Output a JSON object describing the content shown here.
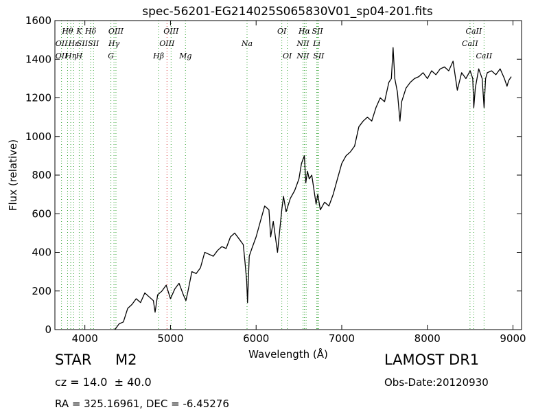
{
  "chart_data": {
    "type": "line",
    "title": "spec-56201-EG214025S065830V01_sp04-201.fits",
    "xlabel": "Wavelength (Å)",
    "ylabel": "Flux (relative)",
    "xlim": [
      3650,
      9100
    ],
    "ylim": [
      0,
      1600
    ],
    "xticks": [
      4000,
      5000,
      6000,
      7000,
      8000,
      9000
    ],
    "yticks": [
      0,
      200,
      400,
      600,
      800,
      1000,
      1200,
      1400,
      1600
    ],
    "grid": false,
    "series": [
      {
        "color": "#000000",
        "x": [
          4350,
          4400,
          4450,
          4500,
          4550,
          4600,
          4650,
          4700,
          4750,
          4800,
          4820,
          4850,
          4900,
          4950,
          5000,
          5050,
          5100,
          5150,
          5180,
          5200,
          5250,
          5300,
          5350,
          5400,
          5450,
          5500,
          5550,
          5600,
          5650,
          5700,
          5750,
          5800,
          5850,
          5870,
          5890,
          5900,
          5920,
          5950,
          6000,
          6050,
          6100,
          6150,
          6170,
          6200,
          6250,
          6300,
          6320,
          6350,
          6400,
          6450,
          6500,
          6530,
          6563,
          6580,
          6600,
          6620,
          6650,
          6700,
          6720,
          6750,
          6800,
          6850,
          6900,
          6950,
          7000,
          7050,
          7100,
          7150,
          7200,
          7250,
          7300,
          7350,
          7400,
          7450,
          7500,
          7550,
          7580,
          7600,
          7620,
          7650,
          7680,
          7700,
          7750,
          7800,
          7850,
          7900,
          7950,
          8000,
          8050,
          8100,
          8150,
          8200,
          8250,
          8300,
          8350,
          8400,
          8450,
          8500,
          8530,
          8542,
          8560,
          8600,
          8640,
          8662,
          8680,
          8700,
          8750,
          8800,
          8850,
          8900,
          8930,
          8950,
          8980
        ],
        "y": [
          0,
          30,
          40,
          110,
          130,
          160,
          140,
          190,
          170,
          150,
          90,
          180,
          200,
          230,
          160,
          210,
          240,
          180,
          150,
          190,
          300,
          290,
          320,
          400,
          390,
          380,
          410,
          430,
          420,
          480,
          500,
          470,
          440,
          350,
          250,
          140,
          380,
          420,
          480,
          560,
          640,
          620,
          480,
          560,
          400,
          620,
          690,
          610,
          680,
          720,
          780,
          860,
          900,
          760,
          820,
          780,
          800,
          650,
          700,
          620,
          660,
          640,
          700,
          780,
          860,
          900,
          920,
          950,
          1050,
          1080,
          1100,
          1080,
          1150,
          1200,
          1180,
          1280,
          1300,
          1460,
          1300,
          1230,
          1080,
          1180,
          1250,
          1280,
          1300,
          1310,
          1330,
          1300,
          1340,
          1320,
          1350,
          1360,
          1340,
          1390,
          1240,
          1330,
          1300,
          1340,
          1300,
          1150,
          1250,
          1350,
          1300,
          1150,
          1300,
          1330,
          1340,
          1320,
          1350,
          1300,
          1260,
          1290,
          1310
        ]
      }
    ],
    "lines": [
      {
        "wl": 3727,
        "color": "#2ca02c",
        "labels": [
          {
            "text": "OII",
            "row": 2
          },
          {
            "text": "OII",
            "row": 3
          }
        ]
      },
      {
        "wl": 3798,
        "color": "#2ca02c",
        "labels": [
          {
            "text": "Hθ",
            "row": 1
          }
        ]
      },
      {
        "wl": 3835,
        "color": "#2ca02c",
        "labels": [
          {
            "text": "Hη",
            "row": 3
          }
        ]
      },
      {
        "wl": 3869,
        "color": "#2ca02c",
        "labels": [
          {
            "text": "Hε",
            "row": 2
          }
        ]
      },
      {
        "wl": 3934,
        "color": "#2ca02c",
        "labels": [
          {
            "text": "K",
            "row": 1
          },
          {
            "text": "H",
            "row": 3
          }
        ]
      },
      {
        "wl": 3970,
        "color": "#2ca02c",
        "labels": [
          {
            "text": "SII",
            "row": 2
          }
        ]
      },
      {
        "wl": 4068,
        "color": "#2ca02c",
        "labels": [
          {
            "text": "Hδ",
            "row": 1
          }
        ]
      },
      {
        "wl": 4101,
        "color": "#2ca02c",
        "labels": [
          {
            "text": "SII",
            "row": 2
          }
        ]
      },
      {
        "wl": 4304,
        "color": "#2ca02c",
        "labels": [
          {
            "text": "G",
            "row": 3
          }
        ]
      },
      {
        "wl": 4340,
        "color": "#2ca02c",
        "labels": [
          {
            "text": "Hγ",
            "row": 2
          }
        ]
      },
      {
        "wl": 4363,
        "color": "#2ca02c",
        "labels": [
          {
            "text": "OIII",
            "row": 1
          }
        ]
      },
      {
        "wl": 4861,
        "color": "#2ca02c",
        "labels": [
          {
            "text": "Hβ",
            "row": 3
          }
        ]
      },
      {
        "wl": 4959,
        "color": "#d62728",
        "labels": [
          {
            "text": "OIII",
            "row": 2
          }
        ]
      },
      {
        "wl": 5007,
        "color": "#2ca02c",
        "labels": [
          {
            "text": "OIII",
            "row": 1
          }
        ]
      },
      {
        "wl": 5175,
        "color": "#2ca02c",
        "labels": [
          {
            "text": "Mg",
            "row": 3
          }
        ]
      },
      {
        "wl": 5894,
        "color": "#2ca02c",
        "labels": [
          {
            "text": "Na",
            "row": 2
          }
        ]
      },
      {
        "wl": 6300,
        "color": "#2ca02c",
        "labels": [
          {
            "text": "OI",
            "row": 1
          }
        ]
      },
      {
        "wl": 6364,
        "color": "#2ca02c",
        "labels": [
          {
            "text": "OI",
            "row": 3
          }
        ]
      },
      {
        "wl": 6548,
        "color": "#2ca02c",
        "labels": [
          {
            "text": "NII",
            "row": 2
          },
          {
            "text": "NII",
            "row": 3
          }
        ]
      },
      {
        "wl": 6563,
        "color": "#2ca02c",
        "labels": [
          {
            "text": "Hα",
            "row": 1
          }
        ]
      },
      {
        "wl": 6584,
        "color": "#2ca02c",
        "labels": []
      },
      {
        "wl": 6708,
        "color": "#2ca02c",
        "labels": [
          {
            "text": "Li",
            "row": 2
          }
        ]
      },
      {
        "wl": 6717,
        "color": "#2ca02c",
        "labels": [
          {
            "text": "SII",
            "row": 1
          }
        ]
      },
      {
        "wl": 6731,
        "color": "#2ca02c",
        "labels": [
          {
            "text": "SII",
            "row": 3
          }
        ]
      },
      {
        "wl": 8498,
        "color": "#2ca02c",
        "labels": [
          {
            "text": "CaII",
            "row": 2
          }
        ]
      },
      {
        "wl": 8542,
        "color": "#2ca02c",
        "labels": [
          {
            "text": "CaII",
            "row": 1
          }
        ]
      },
      {
        "wl": 8662,
        "color": "#2ca02c",
        "labels": [
          {
            "text": "CaII",
            "row": 3
          }
        ]
      }
    ]
  },
  "info": {
    "object_class": "STAR",
    "subclass": "M2",
    "cz": "cz = 14.0  ± 40.0",
    "survey": "LAMOST DR1",
    "obs_date": "Obs-Date:20120930",
    "radec": "RA = 325.16961, DEC = -6.45276"
  }
}
